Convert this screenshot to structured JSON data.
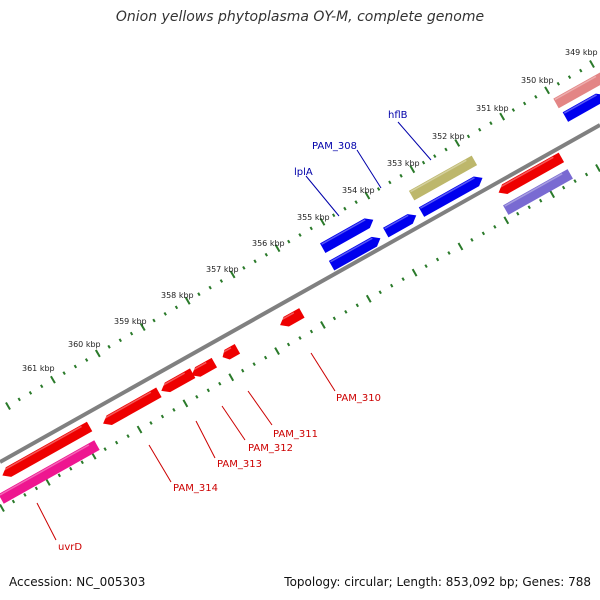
{
  "title": "Onion yellows phytoplasma OY-M, complete genome",
  "footer": {
    "accession": "Accession: NC_005303",
    "summary": "Topology: circular; Length: 853,092 bp; Genes: 788"
  },
  "colors": {
    "backbone": "#808080",
    "tick": "#2a7a2a",
    "forward_cds": "#0000ee",
    "reverse_cds": "#ee0000",
    "label_forward": "#0000aa",
    "label_reverse": "#cc0000",
    "faded_red": "#e07878",
    "faded_blue": "#6a5acd",
    "magenta": "#ee1690",
    "khaki": "#bdb76b"
  },
  "scale_labels": [
    "349 kbp",
    "350 kbp",
    "351 kbp",
    "352 kbp",
    "353 kbp",
    "354 kbp",
    "355 kbp",
    "356 kbp",
    "357 kbp",
    "358 kbp",
    "359 kbp",
    "360 kbp",
    "361 kbp"
  ],
  "gene_labels": [
    {
      "text": "hflB",
      "strand": "forward"
    },
    {
      "text": "PAM_308",
      "strand": "forward"
    },
    {
      "text": "lplA",
      "strand": "forward"
    },
    {
      "text": "PAM_310",
      "strand": "reverse"
    },
    {
      "text": "PAM_311",
      "strand": "reverse"
    },
    {
      "text": "PAM_312",
      "strand": "reverse"
    },
    {
      "text": "PAM_313",
      "strand": "reverse"
    },
    {
      "text": "PAM_314",
      "strand": "reverse"
    },
    {
      "text": "uvrD",
      "strand": "reverse"
    }
  ]
}
